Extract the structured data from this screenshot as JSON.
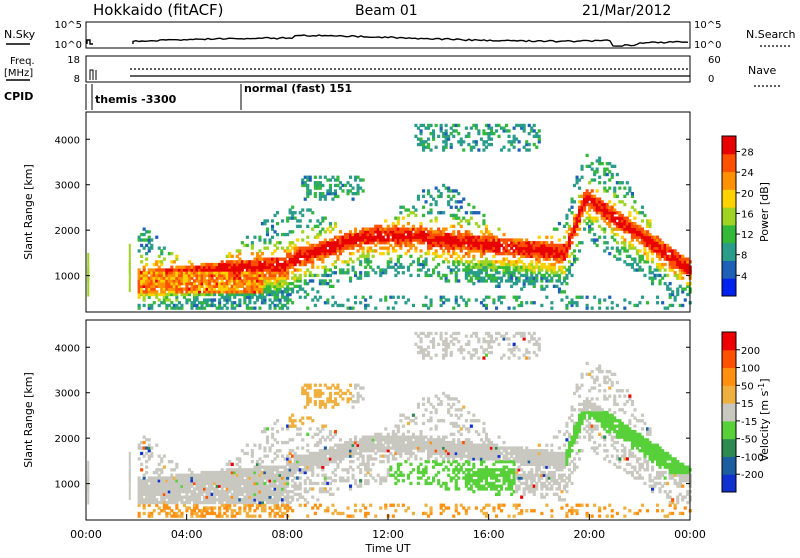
{
  "header": {
    "station": "Hokkaido (fitACF)",
    "beam": "Beam 01",
    "date": "21/Mar/2012"
  },
  "noise_panel": {
    "left_label": "N.Sky",
    "right_label": "N.Search",
    "left_ticks": [
      "10^5",
      "10^0"
    ],
    "right_ticks": [
      "10^5",
      "10^0"
    ]
  },
  "freq_panel": {
    "left_label_line1": "Freq.",
    "left_label_line2": "[MHz]",
    "right_label": "Nave",
    "left_ticks": [
      "18",
      "8"
    ],
    "right_ticks": [
      "60",
      "0"
    ]
  },
  "cpid_panel": {
    "label": "CPID",
    "segments": [
      {
        "start_hour": 1.7,
        "text": "themis -3300"
      },
      {
        "start_hour": 6.05,
        "text": "normal (fast) 151"
      }
    ]
  },
  "chart_data": [
    {
      "type": "heatmap",
      "quantity": "Power",
      "ylabel": "Slant Range [km]",
      "xlabel": "Time UT",
      "xlim": [
        0,
        24
      ],
      "ylim": [
        200,
        4600
      ],
      "yticks": [
        "1000",
        "2000",
        "3000",
        "4000"
      ],
      "colorbar": {
        "label": "Power [dB]",
        "ticks": [
          "4",
          "8",
          "12",
          "16",
          "20",
          "24",
          "28"
        ],
        "range": [
          0,
          31
        ],
        "colors": [
          "#0022ee",
          "#1e5fb8",
          "#2a9c8a",
          "#33b83a",
          "#9fd324",
          "#ffd200",
          "#ff9000",
          "#ff5000",
          "#e80000"
        ]
      }
    },
    {
      "type": "heatmap",
      "quantity": "Velocity",
      "ylabel": "Slant Range [km]",
      "xlabel": "Time UT",
      "xlim": [
        0,
        24
      ],
      "ylim": [
        200,
        4600
      ],
      "yticks": [
        "1000",
        "2000",
        "3000",
        "4000"
      ],
      "xticks": [
        "00:00",
        "04:00",
        "08:00",
        "12:00",
        "16:00",
        "20:00",
        "00:00"
      ],
      "colorbar": {
        "label": "Velocity [m s",
        "label_sup": "-1",
        "label_end": "]",
        "ticks": [
          "200",
          "100",
          "50",
          "15",
          "-15",
          "-50",
          "-100",
          "-200"
        ],
        "colors": [
          "#1030d0",
          "#1d5ea0",
          "#2f8a52",
          "#58d03a",
          "#c8c8c0",
          "#f0b040",
          "#ff9010",
          "#ff5000",
          "#ee0000"
        ]
      }
    }
  ]
}
